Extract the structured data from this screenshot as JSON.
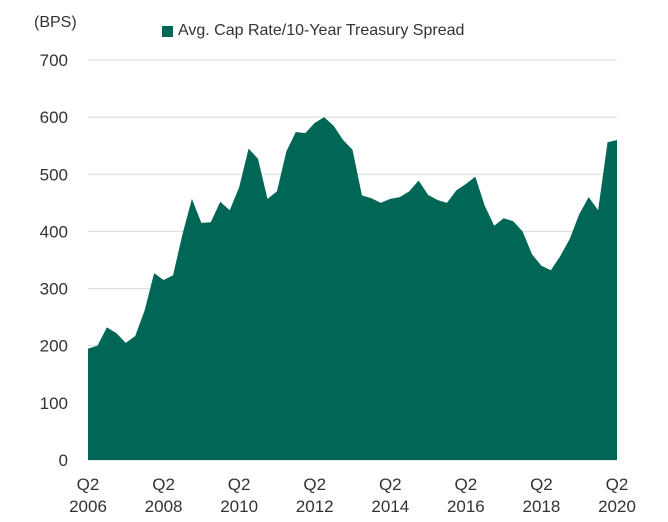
{
  "chart_data": {
    "type": "area",
    "unit_label": "(BPS)",
    "legend": {
      "label": "Avg. Cap Rate/10-Year Treasury Spread",
      "placement": "top"
    },
    "colors": {
      "series": "#006655",
      "text": "#333333",
      "grid": "#d9d9d9"
    },
    "grid": true,
    "ylim": [
      0,
      700
    ],
    "y_ticks": [
      0,
      100,
      200,
      300,
      400,
      500,
      600,
      700
    ],
    "x_ticks": [
      {
        "q": "Q2",
        "year": "2006",
        "label": "Q2 2006"
      },
      {
        "q": "Q2",
        "year": "2008",
        "label": "Q2 2008"
      },
      {
        "q": "Q2",
        "year": "2010",
        "label": "Q2 2010"
      },
      {
        "q": "Q2",
        "year": "2012",
        "label": "Q2 2012"
      },
      {
        "q": "Q2",
        "year": "2014",
        "label": "Q2 2014"
      },
      {
        "q": "Q2",
        "year": "2016",
        "label": "Q2 2016"
      },
      {
        "q": "Q2",
        "year": "2018",
        "label": "Q2 2018"
      },
      {
        "q": "Q2",
        "year": "2020",
        "label": "Q2 2020"
      }
    ],
    "series": [
      {
        "name": "Avg. Cap Rate/10-Year Treasury Spread",
        "x": [
          "Q2 2006",
          "Q3 2006",
          "Q4 2006",
          "Q1 2007",
          "Q2 2007",
          "Q3 2007",
          "Q4 2007",
          "Q1 2008",
          "Q2 2008",
          "Q3 2008",
          "Q4 2008",
          "Q1 2009",
          "Q2 2009",
          "Q3 2009",
          "Q4 2009",
          "Q1 2010",
          "Q2 2010",
          "Q3 2010",
          "Q4 2010",
          "Q1 2011",
          "Q2 2011",
          "Q3 2011",
          "Q4 2011",
          "Q1 2012",
          "Q2 2012",
          "Q3 2012",
          "Q4 2012",
          "Q1 2013",
          "Q2 2013",
          "Q3 2013",
          "Q4 2013",
          "Q1 2014",
          "Q2 2014",
          "Q3 2014",
          "Q4 2014",
          "Q1 2015",
          "Q2 2015",
          "Q3 2015",
          "Q4 2015",
          "Q1 2016",
          "Q2 2016",
          "Q3 2016",
          "Q4 2016",
          "Q1 2017",
          "Q2 2017",
          "Q3 2017",
          "Q4 2017",
          "Q1 2018",
          "Q2 2018",
          "Q3 2018",
          "Q4 2018",
          "Q1 2019",
          "Q2 2019",
          "Q3 2019",
          "Q4 2019",
          "Q1 2020",
          "Q2 2020"
        ],
        "values": [
          195,
          200,
          232,
          222,
          205,
          217,
          262,
          327,
          315,
          323,
          395,
          457,
          415,
          416,
          452,
          437,
          477,
          545,
          527,
          457,
          470,
          540,
          574,
          572,
          590,
          600,
          585,
          560,
          543,
          463,
          458,
          450,
          457,
          460,
          470,
          489,
          464,
          455,
          450,
          472,
          483,
          496,
          445,
          410,
          423,
          418,
          400,
          360,
          340,
          332,
          357,
          387,
          430,
          460,
          437,
          556,
          560
        ]
      }
    ]
  }
}
